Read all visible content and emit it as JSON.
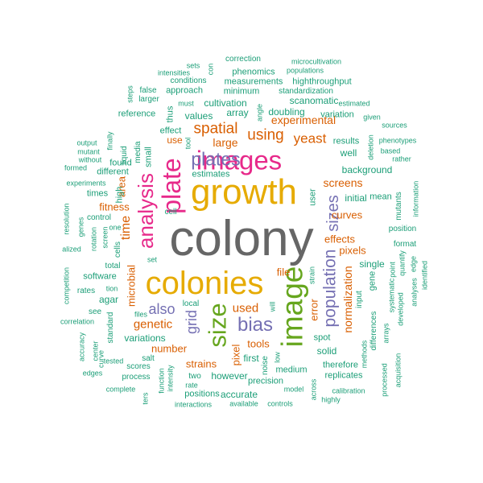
{
  "palette": {
    "grey": "#666666",
    "gold": "#e6ab02",
    "pink": "#e7298a",
    "purple": "#7570b3",
    "green": "#66a61e",
    "orange": "#d95f02",
    "teal": "#1b9e77"
  },
  "words": [
    {
      "text": "colony",
      "color": "grey",
      "size": 62
    },
    {
      "text": "growth",
      "color": "gold",
      "size": 44
    },
    {
      "text": "colonies",
      "color": "gold",
      "size": 40
    },
    {
      "text": "image",
      "color": "green",
      "size": 37
    },
    {
      "text": "images",
      "color": "pink",
      "size": 33
    },
    {
      "text": "plate",
      "color": "pink",
      "size": 32
    },
    {
      "text": "size",
      "color": "green",
      "size": 31
    },
    {
      "text": "analysis",
      "color": "pink",
      "size": 26
    },
    {
      "text": "plates",
      "color": "purple",
      "size": 23
    },
    {
      "text": "bias",
      "color": "purple",
      "size": 24
    },
    {
      "text": "population",
      "color": "purple",
      "size": 21
    },
    {
      "text": "sizes",
      "color": "purple",
      "size": 20
    },
    {
      "text": "spatial",
      "color": "orange",
      "size": 19
    },
    {
      "text": "using",
      "color": "orange",
      "size": 19
    },
    {
      "text": "yeast",
      "color": "orange",
      "size": 17
    },
    {
      "text": "also",
      "color": "purple",
      "size": 18
    },
    {
      "text": "grid",
      "color": "purple",
      "size": 18
    },
    {
      "text": "genetic",
      "color": "orange",
      "size": 15
    },
    {
      "text": "used",
      "color": "orange",
      "size": 15
    },
    {
      "text": "time",
      "color": "orange",
      "size": 16
    },
    {
      "text": "normalization",
      "color": "orange",
      "size": 14
    },
    {
      "text": "experimental",
      "color": "orange",
      "size": 14
    },
    {
      "text": "screens",
      "color": "orange",
      "size": 14
    },
    {
      "text": "large",
      "color": "orange",
      "size": 14
    },
    {
      "text": "curves",
      "color": "orange",
      "size": 13
    },
    {
      "text": "effects",
      "color": "orange",
      "size": 13
    },
    {
      "text": "pixels",
      "color": "orange",
      "size": 13
    },
    {
      "text": "fitness",
      "color": "orange",
      "size": 13
    },
    {
      "text": "microbial",
      "color": "orange",
      "size": 13
    },
    {
      "text": "number",
      "color": "orange",
      "size": 13
    },
    {
      "text": "strains",
      "color": "orange",
      "size": 13
    },
    {
      "text": "tools",
      "color": "orange",
      "size": 13
    },
    {
      "text": "file",
      "color": "orange",
      "size": 13
    },
    {
      "text": "error",
      "color": "orange",
      "size": 13
    },
    {
      "text": "pixel",
      "color": "orange",
      "size": 13
    },
    {
      "text": "area",
      "color": "orange",
      "size": 13
    },
    {
      "text": "use",
      "color": "orange",
      "size": 12
    },
    {
      "text": "background",
      "color": "teal",
      "size": 12
    },
    {
      "text": "initial",
      "color": "teal",
      "size": 12
    },
    {
      "text": "mean",
      "color": "teal",
      "size": 11
    },
    {
      "text": "single",
      "color": "teal",
      "size": 12
    },
    {
      "text": "values",
      "color": "teal",
      "size": 12
    },
    {
      "text": "cultivation",
      "color": "teal",
      "size": 12
    },
    {
      "text": "array",
      "color": "teal",
      "size": 12
    },
    {
      "text": "scanomatic",
      "color": "teal",
      "size": 12
    },
    {
      "text": "doubling",
      "color": "teal",
      "size": 12
    },
    {
      "text": "measurements",
      "color": "teal",
      "size": 11
    },
    {
      "text": "minimum",
      "color": "teal",
      "size": 11
    },
    {
      "text": "highthroughput",
      "color": "teal",
      "size": 11
    },
    {
      "text": "standardization",
      "color": "teal",
      "size": 10
    },
    {
      "text": "phenomics",
      "color": "teal",
      "size": 11
    },
    {
      "text": "correction",
      "color": "teal",
      "size": 10
    },
    {
      "text": "microcultivation",
      "color": "teal",
      "size": 9
    },
    {
      "text": "populations",
      "color": "teal",
      "size": 9
    },
    {
      "text": "conditions",
      "color": "teal",
      "size": 10
    },
    {
      "text": "intensities",
      "color": "teal",
      "size": 9
    },
    {
      "text": "sets",
      "color": "teal",
      "size": 9
    },
    {
      "text": "con",
      "color": "teal",
      "size": 9
    },
    {
      "text": "approach",
      "color": "teal",
      "size": 11
    },
    {
      "text": "false",
      "color": "teal",
      "size": 10
    },
    {
      "text": "larger",
      "color": "teal",
      "size": 10
    },
    {
      "text": "steps",
      "color": "teal",
      "size": 9
    },
    {
      "text": "must",
      "color": "teal",
      "size": 9
    },
    {
      "text": "thus",
      "color": "teal",
      "size": 11
    },
    {
      "text": "angle",
      "color": "teal",
      "size": 9
    },
    {
      "text": "estimated",
      "color": "teal",
      "size": 9
    },
    {
      "text": "variation",
      "color": "teal",
      "size": 11
    },
    {
      "text": "given",
      "color": "teal",
      "size": 9
    },
    {
      "text": "sources",
      "color": "teal",
      "size": 9
    },
    {
      "text": "reference",
      "color": "teal",
      "size": 11
    },
    {
      "text": "effect",
      "color": "teal",
      "size": 11
    },
    {
      "text": "tool",
      "color": "teal",
      "size": 9
    },
    {
      "text": "results",
      "color": "teal",
      "size": 11
    },
    {
      "text": "well",
      "color": "teal",
      "size": 12
    },
    {
      "text": "deletion",
      "color": "teal",
      "size": 9
    },
    {
      "text": "phenotypes",
      "color": "teal",
      "size": 9
    },
    {
      "text": "based",
      "color": "teal",
      "size": 9
    },
    {
      "text": "rather",
      "color": "teal",
      "size": 9
    },
    {
      "text": "output",
      "color": "teal",
      "size": 9
    },
    {
      "text": "mutant",
      "color": "teal",
      "size": 9
    },
    {
      "text": "without",
      "color": "teal",
      "size": 9
    },
    {
      "text": "formed",
      "color": "teal",
      "size": 9
    },
    {
      "text": "finally",
      "color": "teal",
      "size": 9
    },
    {
      "text": "liquid",
      "color": "teal",
      "size": 10
    },
    {
      "text": "media",
      "color": "teal",
      "size": 10
    },
    {
      "text": "small",
      "color": "teal",
      "size": 11
    },
    {
      "text": "found",
      "color": "teal",
      "size": 11
    },
    {
      "text": "different",
      "color": "teal",
      "size": 11
    },
    {
      "text": "estimates",
      "color": "teal",
      "size": 11
    },
    {
      "text": "experiments",
      "color": "teal",
      "size": 9
    },
    {
      "text": "times",
      "color": "teal",
      "size": 11
    },
    {
      "text": "high",
      "color": "teal",
      "size": 11
    },
    {
      "text": "control",
      "color": "teal",
      "size": 10
    },
    {
      "text": "cell",
      "color": "teal",
      "size": 10
    },
    {
      "text": "user",
      "color": "teal",
      "size": 11
    },
    {
      "text": "mutants",
      "color": "teal",
      "size": 10
    },
    {
      "text": "information",
      "color": "teal",
      "size": 9
    },
    {
      "text": "position",
      "color": "teal",
      "size": 10
    },
    {
      "text": "format",
      "color": "teal",
      "size": 10
    },
    {
      "text": "resolution",
      "color": "teal",
      "size": 9
    },
    {
      "text": "genes",
      "color": "teal",
      "size": 9
    },
    {
      "text": "rotation",
      "color": "teal",
      "size": 9
    },
    {
      "text": "screen",
      "color": "teal",
      "size": 9
    },
    {
      "text": "one",
      "color": "teal",
      "size": 9
    },
    {
      "text": "cells",
      "color": "teal",
      "size": 10
    },
    {
      "text": "alized",
      "color": "teal",
      "size": 9
    },
    {
      "text": "total",
      "color": "teal",
      "size": 10
    },
    {
      "text": "software",
      "color": "teal",
      "size": 11
    },
    {
      "text": "tion",
      "color": "teal",
      "size": 9
    },
    {
      "text": "agar",
      "color": "teal",
      "size": 12
    },
    {
      "text": "set",
      "color": "teal",
      "size": 9
    },
    {
      "text": "local",
      "color": "teal",
      "size": 10
    },
    {
      "text": "strain",
      "color": "teal",
      "size": 9
    },
    {
      "text": "will",
      "color": "teal",
      "size": 9
    },
    {
      "text": "gene",
      "color": "teal",
      "size": 11
    },
    {
      "text": "input",
      "color": "teal",
      "size": 10
    },
    {
      "text": "point",
      "color": "teal",
      "size": 9
    },
    {
      "text": "quantify",
      "color": "teal",
      "size": 9
    },
    {
      "text": "edge",
      "color": "teal",
      "size": 9
    },
    {
      "text": "identified",
      "color": "teal",
      "size": 9
    },
    {
      "text": "systematic",
      "color": "teal",
      "size": 9
    },
    {
      "text": "developed",
      "color": "teal",
      "size": 9
    },
    {
      "text": "analyses",
      "color": "teal",
      "size": 9
    },
    {
      "text": "competition",
      "color": "teal",
      "size": 9
    },
    {
      "text": "rates",
      "color": "teal",
      "size": 10
    },
    {
      "text": "see",
      "color": "teal",
      "size": 10
    },
    {
      "text": "correlation",
      "color": "teal",
      "size": 9
    },
    {
      "text": "files",
      "color": "teal",
      "size": 9
    },
    {
      "text": "standard",
      "color": "teal",
      "size": 10
    },
    {
      "text": "variations",
      "color": "teal",
      "size": 12
    },
    {
      "text": "salt",
      "color": "teal",
      "size": 10
    },
    {
      "text": "scores",
      "color": "teal",
      "size": 10
    },
    {
      "text": "tested",
      "color": "teal",
      "size": 9
    },
    {
      "text": "center",
      "color": "teal",
      "size": 9
    },
    {
      "text": "curve",
      "color": "teal",
      "size": 9
    },
    {
      "text": "accuracy",
      "color": "teal",
      "size": 9
    },
    {
      "text": "process",
      "color": "teal",
      "size": 10
    },
    {
      "text": "complete",
      "color": "teal",
      "size": 9
    },
    {
      "text": "ters",
      "color": "teal",
      "size": 9
    },
    {
      "text": "function",
      "color": "teal",
      "size": 9
    },
    {
      "text": "intensity",
      "color": "teal",
      "size": 9
    },
    {
      "text": "two",
      "color": "teal",
      "size": 10
    },
    {
      "text": "rate",
      "color": "teal",
      "size": 9
    },
    {
      "text": "positions",
      "color": "teal",
      "size": 11
    },
    {
      "text": "interactions",
      "color": "teal",
      "size": 9
    },
    {
      "text": "however",
      "color": "teal",
      "size": 12
    },
    {
      "text": "accurate",
      "color": "teal",
      "size": 12
    },
    {
      "text": "precision",
      "color": "teal",
      "size": 11
    },
    {
      "text": "noise",
      "color": "teal",
      "size": 10
    },
    {
      "text": "first",
      "color": "teal",
      "size": 12
    },
    {
      "text": "low",
      "color": "teal",
      "size": 9
    },
    {
      "text": "medium",
      "color": "teal",
      "size": 11
    },
    {
      "text": "model",
      "color": "teal",
      "size": 9
    },
    {
      "text": "available",
      "color": "teal",
      "size": 9
    },
    {
      "text": "controls",
      "color": "teal",
      "size": 9
    },
    {
      "text": "across",
      "color": "teal",
      "size": 9
    },
    {
      "text": "spot",
      "color": "teal",
      "size": 11
    },
    {
      "text": "solid",
      "color": "teal",
      "size": 12
    },
    {
      "text": "therefore",
      "color": "teal",
      "size": 11
    },
    {
      "text": "replicates",
      "color": "teal",
      "size": 11
    },
    {
      "text": "calibration",
      "color": "teal",
      "size": 9
    },
    {
      "text": "highly",
      "color": "teal",
      "size": 9
    },
    {
      "text": "methods",
      "color": "teal",
      "size": 9
    },
    {
      "text": "differences",
      "color": "teal",
      "size": 10
    },
    {
      "text": "arrays",
      "color": "teal",
      "size": 9
    },
    {
      "text": "processed",
      "color": "teal",
      "size": 9
    },
    {
      "text": "acquisition",
      "color": "teal",
      "size": 9
    },
    {
      "text": "edges",
      "color": "teal",
      "size": 9
    }
  ]
}
